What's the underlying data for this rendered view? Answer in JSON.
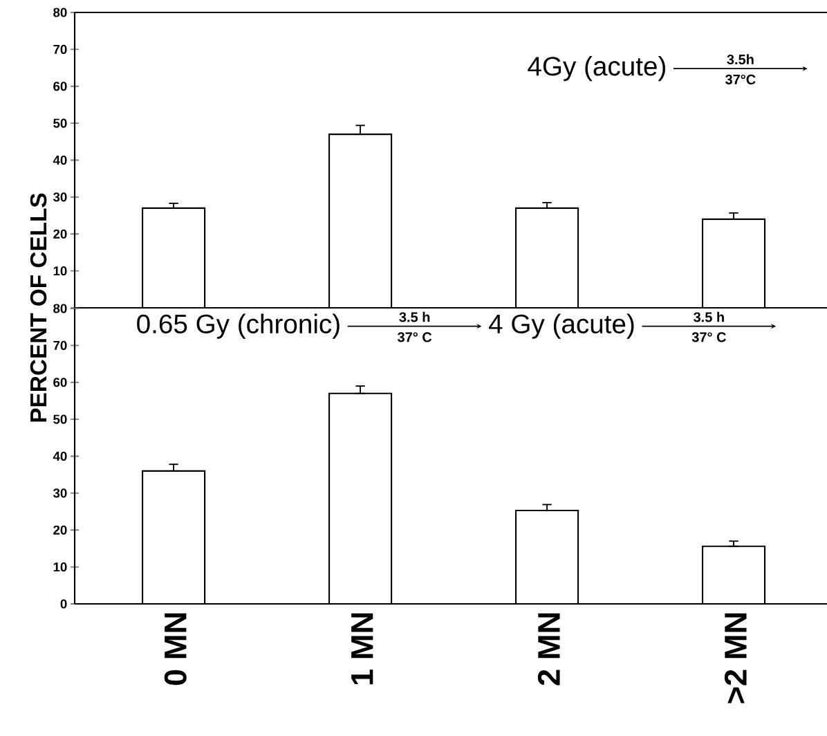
{
  "chart_data": [
    {
      "type": "bar",
      "categories": [
        null,
        null,
        null,
        null
      ],
      "values": [
        27,
        47,
        27,
        24
      ],
      "errors": [
        [
          27,
          28.3
        ],
        [
          47,
          49.4
        ],
        [
          27,
          28.5
        ],
        [
          24,
          25.7
        ]
      ],
      "ylim": [
        0,
        80
      ],
      "yticks": [
        {
          "value": 0,
          "label": null
        },
        10,
        20,
        30,
        40,
        50,
        60,
        70,
        80
      ],
      "ylabel": "PERCENT OF CELLS",
      "color": "#ffffff",
      "annotations": [
        "4Gy (acute)",
        "3.5h",
        "37°C"
      ]
    },
    {
      "type": "bar",
      "categories": [
        "0 MN",
        "1 MN",
        "2 MN",
        ">2 MN"
      ],
      "values": [
        36,
        57,
        25.3,
        15.6
      ],
      "errors": [
        [
          36,
          37.8
        ],
        [
          57,
          59
        ],
        [
          25.3,
          26.9
        ],
        [
          15.6,
          17
        ]
      ],
      "ylim": [
        0,
        80
      ],
      "yticks": [
        0,
        10,
        20,
        30,
        40,
        50,
        60,
        70,
        80
      ],
      "color": "#ffffff",
      "annotations": [
        "0.65 Gy (chronic)",
        "3.5 h",
        "37° C",
        "4 Gy (acute)",
        "3.5 h",
        "37° C"
      ]
    }
  ]
}
